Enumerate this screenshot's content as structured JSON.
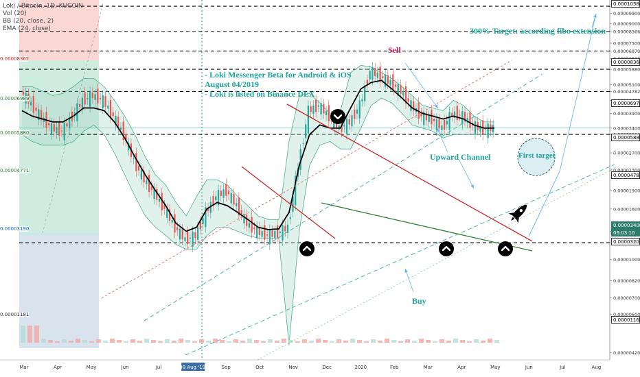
{
  "legend": {
    "title": "Loki / Bitcoin, 1D, KUCOIN",
    "vol": "Vol (20)",
    "bb": "BB (20, close, 2)",
    "ema": "EMA (24, close)"
  },
  "annotations": {
    "target": "300% Target: according fibo extension",
    "sell": "Sell",
    "news": [
      "- Loki Messenger Beta for Android & iOS",
      "August 04/2019",
      "- Loki is listed on Binance DEX"
    ],
    "upward_channel": "Upward Channel",
    "first_target": "First target",
    "buy": "Buy"
  },
  "price_levels": [
    "0.00010580",
    "0.00008366",
    "0.00006970",
    "0.00005880",
    "0.00004782",
    "0.00003206",
    "0.00001169"
  ],
  "current_price": "0.00003400",
  "current_time": "06:03:10",
  "left_levels": [
    "0.00008362",
    "0.00006989",
    "0.00005880",
    "0.00004771",
    "0.00003190",
    "0.00001181"
  ],
  "colors": {
    "up": "#26a69a",
    "down": "#ef5350",
    "ema": "#000000",
    "band": "#a8d8c8",
    "sell_line": "#c62828",
    "support_line": "#2e7d32",
    "channel_red": "#e57373",
    "channel_teal": "#4db6ac",
    "arrow": "#64b5f6"
  },
  "chart_data": {
    "type": "line",
    "title": "Loki / Bitcoin, 1D, KUCOIN",
    "ylabel": "",
    "xlabel": "",
    "y_scale": "log",
    "ylim": [
      4e-06,
      0.00011
    ],
    "x_ticks": [
      "Mar",
      "Apr",
      "May",
      "Jun",
      "Jul",
      "08 Aug '19",
      "Sep",
      "Oct",
      "Nov",
      "Dec",
      "2020",
      "Feb",
      "Mar",
      "Apr",
      "May",
      "Jun",
      "Jul",
      "Aug"
    ],
    "y_ticks": [
      "0.00010580",
      "0.00009900",
      "0.00009000",
      "0.00008366",
      "0.00007500",
      "0.00006970",
      "0.00006500",
      "0.00005880",
      "0.00005100",
      "0.00004782",
      "0.00004400",
      "0.00003900",
      "0.00003400",
      "0.00003206",
      "0.00002700",
      "0.00002300",
      "0.00001900",
      "0.00001600",
      "0.00001300",
      "0.00001169",
      "0.00001000",
      "0.00000820",
      "0.00000700",
      "0.00000600",
      "0.00000420"
    ],
    "series": [
      {
        "kind": "price",
        "values": [
          4.78e-05,
          4.25e-05,
          3.75e-05,
          3.4e-05,
          3.3e-05,
          3.8e-05,
          4.4e-05,
          4.6e-05,
          4.4e-05,
          3.8e-05,
          3.2e-05,
          2.5e-05,
          2.1e-05,
          1.85e-05,
          1.6e-05,
          1.35e-05,
          1.2e-05,
          1.25e-05,
          1.55e-05,
          1.8e-05,
          1.9e-05,
          1.65e-05,
          1.4e-05,
          1.3e-05,
          1.25e-05,
          1.28e-05,
          1.35e-05,
          2.4e-05,
          4e-05,
          4.2e-05,
          3.8e-05,
          3.4e-05,
          3.6e-05,
          4.2e-05,
          5.8e-05,
          5.5e-05,
          5.2e-05,
          4.8e-05,
          4.2e-05,
          3.8e-05,
          3.7e-05,
          3.4e-05,
          3.9e-05,
          3.8e-05,
          3.5e-05,
          3.35e-05,
          3.42e-05
        ]
      },
      {
        "kind": "ema",
        "values": [
          4e-05,
          3.8e-05,
          3.7e-05,
          3.6e-05,
          3.6e-05,
          3.8e-05,
          4.1e-05,
          4.1e-05,
          4e-05,
          3.6e-05,
          3.1e-05,
          2.6e-05,
          2.2e-05,
          1.9e-05,
          1.65e-05,
          1.4e-05,
          1.3e-05,
          1.35e-05,
          1.6e-05,
          1.7e-05,
          1.65e-05,
          1.55e-05,
          1.45e-05,
          1.35e-05,
          1.32e-05,
          1.33e-05,
          1.55e-05,
          2.4e-05,
          3.2e-05,
          3.5e-05,
          3.4e-05,
          3.4e-05,
          4.1e-05,
          4.9e-05,
          5.2e-05,
          5.3e-05,
          4.9e-05,
          4.5e-05,
          4.1e-05,
          3.9e-05,
          3.8e-05,
          3.7e-05,
          3.8e-05,
          3.7e-05,
          3.5e-05,
          3.4e-05,
          3.4e-05
        ]
      },
      {
        "kind": "bb_upper",
        "values": [
          5e-05,
          5e-05,
          4.8e-05,
          4.6e-05,
          4.7e-05,
          5e-05,
          5.4e-05,
          5.4e-05,
          5e-05,
          4.4e-05,
          3.8e-05,
          3.2e-05,
          2.6e-05,
          2.2e-05,
          2e-05,
          1.7e-05,
          1.5e-05,
          1.8e-05,
          2.1e-05,
          2.1e-05,
          2e-05,
          1.8e-05,
          1.65e-05,
          1.5e-05,
          1.45e-05,
          1.45e-05,
          3e-05,
          4.6e-05,
          4.7e-05,
          4.3e-05,
          3.9e-05,
          4e-05,
          5.7e-05,
          6.1e-05,
          6e-05,
          5.7e-05,
          5.4e-05,
          5e-05,
          4.6e-05,
          4.2e-05,
          4.1e-05,
          4e-05,
          4.4e-05,
          4.2e-05,
          3.8e-05,
          3.6e-05,
          3.6e-05
        ]
      },
      {
        "kind": "bb_lower",
        "values": [
          3.2e-05,
          3e-05,
          2.9e-05,
          2.9e-05,
          2.9e-05,
          3e-05,
          3.3e-05,
          3.5e-05,
          3.2e-05,
          2.7e-05,
          2.2e-05,
          1.8e-05,
          1.5e-05,
          1.35e-05,
          1.25e-05,
          1.15e-05,
          1.1e-05,
          1.1e-05,
          1.25e-05,
          1.35e-05,
          1.35e-05,
          1.3e-05,
          1.25e-05,
          1.22e-05,
          1.22e-05,
          1.22e-05,
          4.5e-06,
          1.3e-05,
          2.4e-05,
          2.9e-05,
          3e-05,
          2.8e-05,
          2.8e-05,
          3.4e-05,
          4.2e-05,
          4.5e-05,
          4.3e-05,
          3.9e-05,
          3.5e-05,
          3.4e-05,
          3.3e-05,
          3.1e-05,
          3.2e-05,
          3.2e-05,
          3.2e-05,
          3.2e-05,
          3.2e-05
        ]
      }
    ]
  }
}
